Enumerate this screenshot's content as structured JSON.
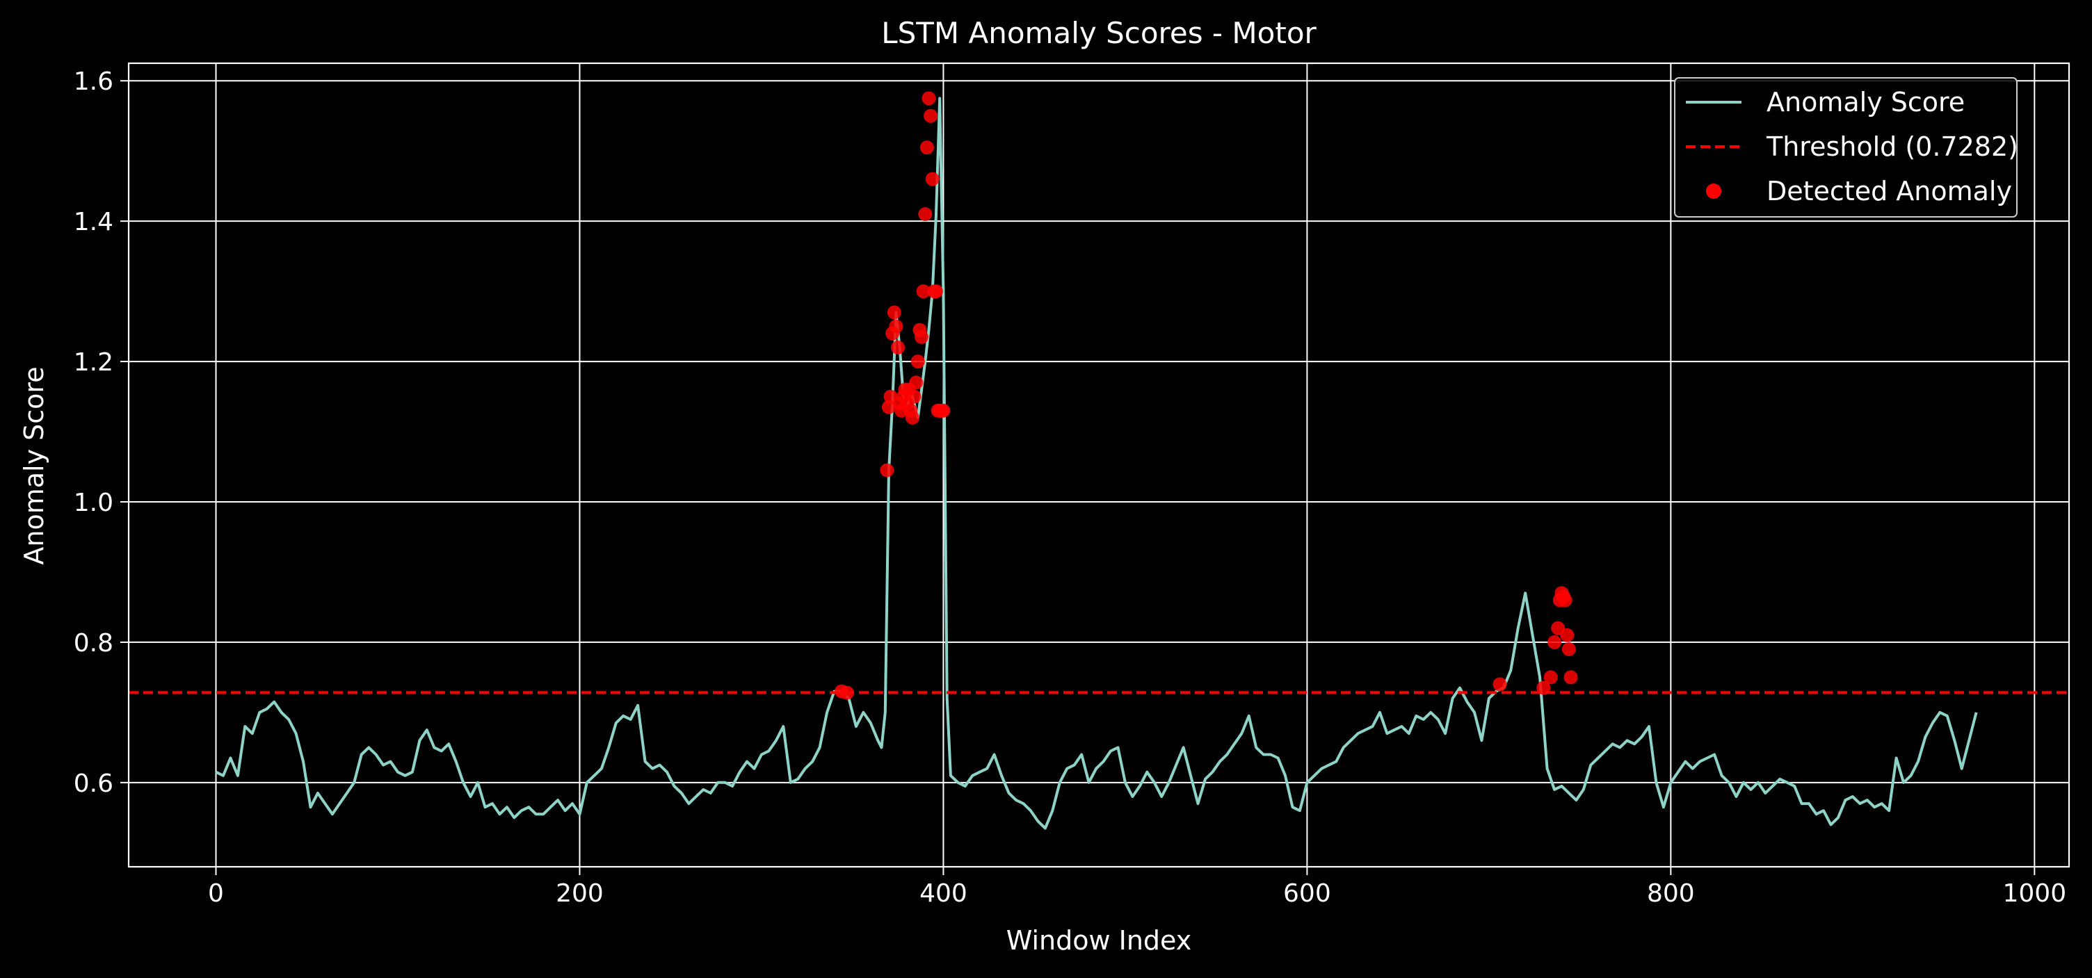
{
  "chart_data": {
    "type": "line",
    "title": "LSTM Anomaly Scores - Motor",
    "xlabel": "Window Index",
    "ylabel": "Anomaly Score",
    "xlim": [
      -48,
      1019
    ],
    "ylim": [
      0.48,
      1.625
    ],
    "xticks": [
      0,
      200,
      400,
      600,
      800,
      1000
    ],
    "xtick_labels": [
      "0",
      "200",
      "400",
      "600",
      "800",
      "1000"
    ],
    "yticks": [
      0.6,
      0.8,
      1.0,
      1.2,
      1.4,
      1.6
    ],
    "ytick_labels": [
      "0.6",
      "0.8",
      "1.0",
      "1.2",
      "1.4",
      "1.6"
    ],
    "grid": true,
    "legend_position": "top-right",
    "threshold": 0.7282,
    "series": [
      {
        "name": "Anomaly Score",
        "kind": "line",
        "color": "#8dd3c7",
        "x": [
          0,
          4,
          8,
          12,
          16,
          20,
          24,
          28,
          32,
          36,
          40,
          44,
          48,
          52,
          56,
          60,
          64,
          68,
          72,
          76,
          80,
          84,
          88,
          92,
          96,
          100,
          104,
          108,
          112,
          116,
          120,
          124,
          128,
          132,
          136,
          140,
          144,
          148,
          152,
          156,
          160,
          164,
          168,
          172,
          176,
          180,
          184,
          188,
          192,
          196,
          200,
          204,
          208,
          212,
          216,
          220,
          224,
          228,
          232,
          236,
          240,
          244,
          248,
          252,
          256,
          260,
          264,
          268,
          272,
          276,
          280,
          284,
          288,
          292,
          296,
          300,
          304,
          308,
          312,
          316,
          320,
          324,
          328,
          332,
          336,
          340,
          344,
          348,
          352,
          356,
          360,
          364,
          366,
          368,
          370,
          372,
          374,
          376,
          378,
          380,
          382,
          384,
          386,
          388,
          390,
          392,
          394,
          396,
          398,
          400,
          402,
          404,
          408,
          412,
          416,
          420,
          424,
          428,
          432,
          436,
          440,
          444,
          448,
          452,
          456,
          460,
          464,
          468,
          472,
          476,
          480,
          484,
          488,
          492,
          496,
          500,
          504,
          508,
          512,
          516,
          520,
          524,
          528,
          532,
          536,
          540,
          544,
          548,
          552,
          556,
          560,
          564,
          568,
          572,
          576,
          580,
          584,
          588,
          592,
          596,
          600,
          604,
          608,
          612,
          616,
          620,
          624,
          628,
          632,
          636,
          640,
          644,
          648,
          652,
          656,
          660,
          664,
          668,
          672,
          676,
          680,
          684,
          688,
          692,
          696,
          700,
          704,
          708,
          712,
          716,
          720,
          724,
          728,
          732,
          736,
          740,
          744,
          748,
          752,
          756,
          760,
          764,
          768,
          772,
          776,
          780,
          784,
          788,
          792,
          796,
          800,
          804,
          808,
          812,
          816,
          820,
          824,
          828,
          832,
          836,
          840,
          844,
          848,
          852,
          856,
          860,
          864,
          868,
          872,
          876,
          880,
          884,
          888,
          892,
          896,
          900,
          904,
          908,
          912,
          916,
          920,
          924,
          928,
          932,
          936,
          940,
          944,
          948,
          952,
          956,
          960,
          964,
          968
        ],
        "values": [
          0.615,
          0.61,
          0.635,
          0.61,
          0.68,
          0.67,
          0.7,
          0.705,
          0.715,
          0.7,
          0.69,
          0.67,
          0.63,
          0.565,
          0.585,
          0.57,
          0.555,
          0.57,
          0.585,
          0.6,
          0.64,
          0.65,
          0.64,
          0.625,
          0.63,
          0.615,
          0.61,
          0.615,
          0.66,
          0.675,
          0.65,
          0.645,
          0.655,
          0.63,
          0.6,
          0.58,
          0.6,
          0.565,
          0.57,
          0.555,
          0.565,
          0.55,
          0.56,
          0.565,
          0.555,
          0.555,
          0.565,
          0.575,
          0.56,
          0.57,
          0.555,
          0.6,
          0.61,
          0.62,
          0.65,
          0.685,
          0.695,
          0.69,
          0.71,
          0.63,
          0.62,
          0.625,
          0.615,
          0.595,
          0.585,
          0.57,
          0.58,
          0.59,
          0.585,
          0.6,
          0.6,
          0.595,
          0.615,
          0.63,
          0.62,
          0.64,
          0.645,
          0.66,
          0.68,
          0.6,
          0.605,
          0.62,
          0.63,
          0.65,
          0.7,
          0.73,
          0.73,
          0.72,
          0.68,
          0.7,
          0.685,
          0.66,
          0.65,
          0.7,
          1.045,
          1.14,
          1.27,
          1.22,
          1.15,
          1.13,
          1.16,
          1.14,
          1.12,
          1.16,
          1.2,
          1.245,
          1.3,
          1.41,
          1.575,
          1.3,
          0.72,
          0.61,
          0.6,
          0.595,
          0.61,
          0.615,
          0.62,
          0.64,
          0.61,
          0.585,
          0.575,
          0.57,
          0.56,
          0.545,
          0.535,
          0.56,
          0.6,
          0.62,
          0.625,
          0.64,
          0.6,
          0.62,
          0.63,
          0.645,
          0.65,
          0.6,
          0.58,
          0.595,
          0.615,
          0.6,
          0.58,
          0.6,
          0.625,
          0.65,
          0.61,
          0.57,
          0.605,
          0.615,
          0.63,
          0.64,
          0.655,
          0.67,
          0.695,
          0.65,
          0.64,
          0.64,
          0.635,
          0.61,
          0.565,
          0.56,
          0.6,
          0.61,
          0.62,
          0.625,
          0.63,
          0.65,
          0.66,
          0.67,
          0.675,
          0.68,
          0.7,
          0.67,
          0.675,
          0.68,
          0.67,
          0.695,
          0.69,
          0.7,
          0.69,
          0.67,
          0.72,
          0.735,
          0.715,
          0.7,
          0.66,
          0.72,
          0.73,
          0.735,
          0.76,
          0.82,
          0.87,
          0.81,
          0.75,
          0.62,
          0.59,
          0.595,
          0.585,
          0.575,
          0.59,
          0.625,
          0.635,
          0.645,
          0.655,
          0.65,
          0.66,
          0.655,
          0.665,
          0.68,
          0.6,
          0.565,
          0.6,
          0.615,
          0.63,
          0.62,
          0.63,
          0.635,
          0.64,
          0.61,
          0.6,
          0.58,
          0.6,
          0.59,
          0.6,
          0.585,
          0.595,
          0.605,
          0.6,
          0.595,
          0.57,
          0.57,
          0.555,
          0.56,
          0.54,
          0.55,
          0.575,
          0.58,
          0.57,
          0.575,
          0.565,
          0.57,
          0.56,
          0.635,
          0.6,
          0.61,
          0.63,
          0.665,
          0.685,
          0.7,
          0.695,
          0.66,
          0.62,
          0.66,
          0.7
        ]
      },
      {
        "name": "Threshold (0.7282)",
        "kind": "hline",
        "color": "#ff0000",
        "y": 0.7282
      },
      {
        "name": "Detected Anomaly",
        "kind": "scatter",
        "color": "#ff0000",
        "x": [
          344,
          347,
          369,
          370,
          371,
          372,
          373,
          374,
          375,
          376,
          377,
          378,
          379,
          380,
          381,
          382,
          383,
          384,
          385,
          386,
          387,
          388,
          389,
          390,
          391,
          392,
          393,
          394,
          395,
          396,
          397,
          398,
          399,
          400,
          706,
          730,
          734,
          736,
          738,
          739,
          740,
          741,
          742,
          743,
          744,
          745
        ],
        "y": [
          0.73,
          0.728,
          1.045,
          1.135,
          1.15,
          1.24,
          1.27,
          1.25,
          1.22,
          1.14,
          1.13,
          1.15,
          1.16,
          1.14,
          1.16,
          1.13,
          1.12,
          1.15,
          1.17,
          1.2,
          1.245,
          1.235,
          1.3,
          1.41,
          1.505,
          1.575,
          1.55,
          1.46,
          1.3,
          1.3,
          1.13,
          1.13,
          1.13,
          1.13,
          0.74,
          0.735,
          0.75,
          0.8,
          0.82,
          0.86,
          0.87,
          0.865,
          0.86,
          0.81,
          0.79,
          0.75
        ]
      }
    ]
  }
}
